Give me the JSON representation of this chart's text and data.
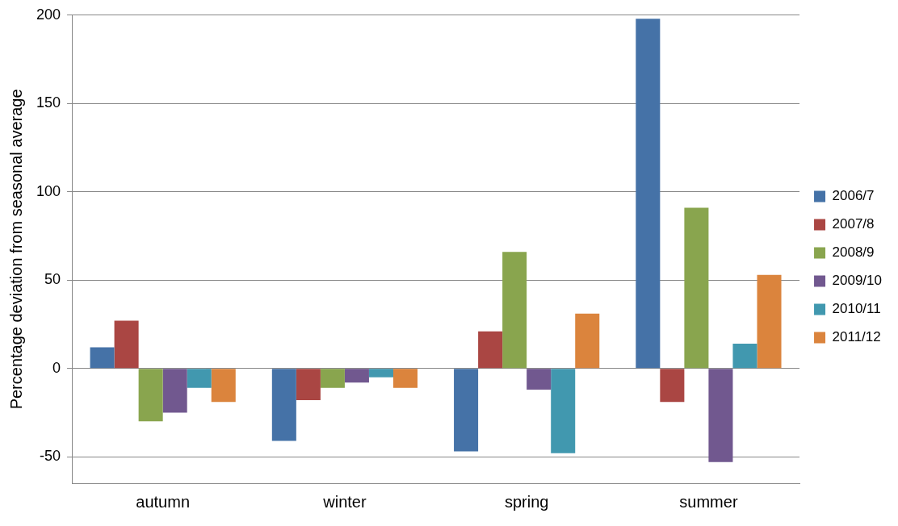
{
  "chart_data": {
    "type": "bar",
    "ylabel": "Percentage deviation from seasonal average",
    "categories": [
      "autumn",
      "winter",
      "spring",
      "summer"
    ],
    "series": [
      {
        "name": "2006/7",
        "color": "#4572a7",
        "values": [
          12,
          -41,
          -47,
          198
        ]
      },
      {
        "name": "2007/8",
        "color": "#aa4643",
        "values": [
          27,
          -18,
          21,
          -19
        ]
      },
      {
        "name": "2008/9",
        "color": "#89a54e",
        "values": [
          -30,
          -11,
          66,
          91
        ]
      },
      {
        "name": "2009/10",
        "color": "#71588f",
        "values": [
          -25,
          -8,
          -12,
          -53
        ]
      },
      {
        "name": "2010/11",
        "color": "#4198af",
        "values": [
          -11,
          -5,
          -48,
          14
        ]
      },
      {
        "name": "2011/12",
        "color": "#db843d",
        "values": [
          -19,
          -11,
          31,
          53
        ]
      }
    ],
    "ylim": [
      -65,
      200
    ],
    "yticks": [
      -50,
      0,
      50,
      100,
      150,
      200
    ],
    "grid": "y",
    "legend": "right"
  }
}
